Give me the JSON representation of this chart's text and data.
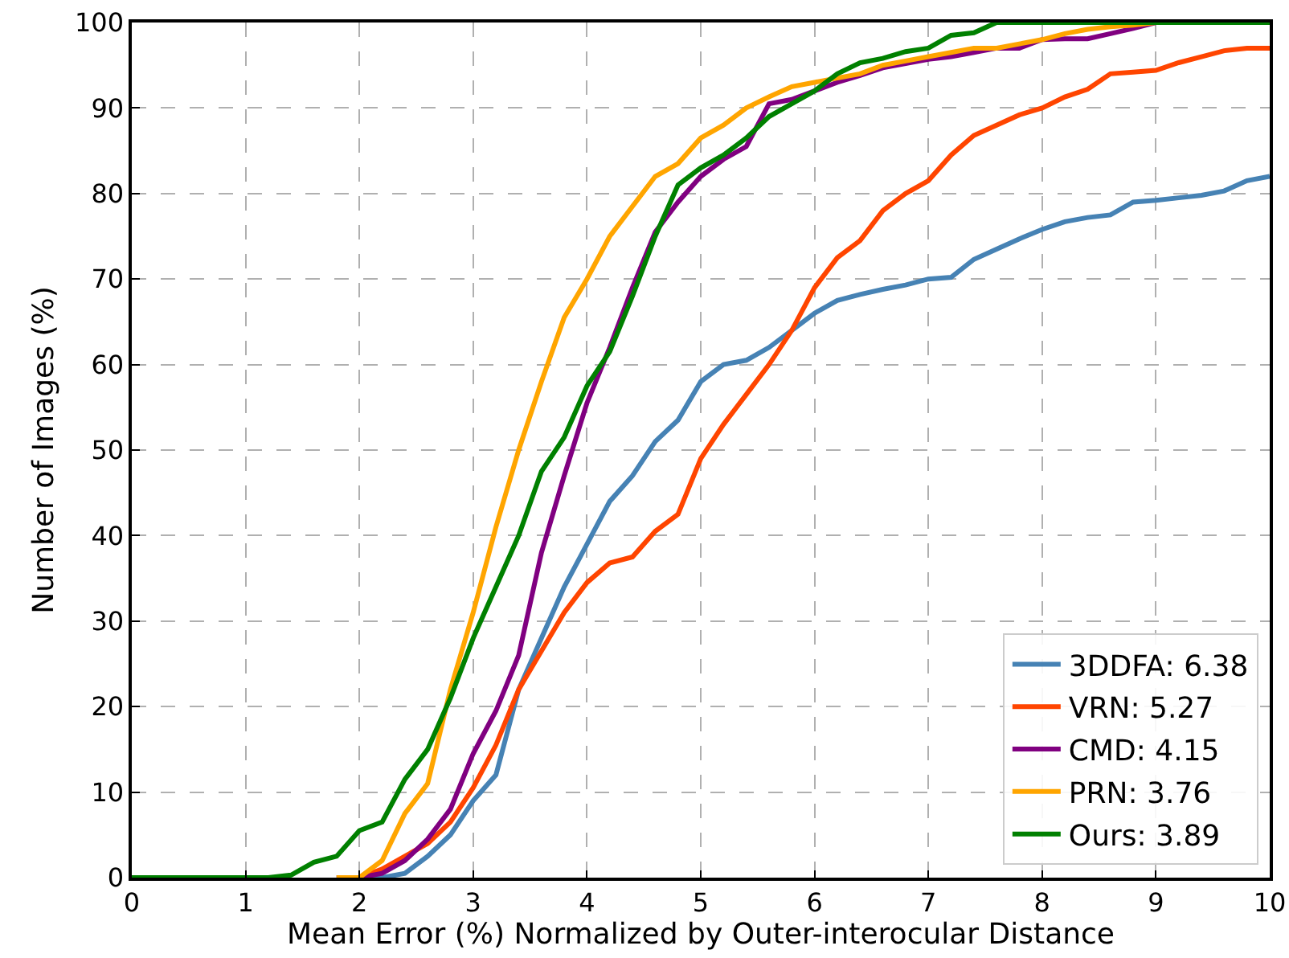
{
  "chart_data": {
    "type": "line",
    "xlabel": "Mean Error (%) Normalized by Outer-interocular Distance",
    "ylabel": "Number of Images (%)",
    "x": [
      0,
      0.2,
      0.4,
      0.6,
      0.8,
      1,
      1.2,
      1.4,
      1.6,
      1.8,
      2,
      2.2,
      2.4,
      2.6,
      2.8,
      3,
      3.2,
      3.4,
      3.6,
      3.8,
      4,
      4.2,
      4.4,
      4.6,
      4.8,
      5,
      5.2,
      5.4,
      5.6,
      5.8,
      6,
      6.2,
      6.4,
      6.6,
      6.8,
      7,
      7.2,
      7.4,
      7.6,
      7.8,
      8,
      8.2,
      8.4,
      8.6,
      8.8,
      9,
      9.2,
      9.4,
      9.6,
      9.8,
      10
    ],
    "series": [
      {
        "name": "3DDFA: 6.38",
        "color": "#4682b4",
        "values": [
          null,
          null,
          null,
          null,
          null,
          null,
          null,
          null,
          null,
          0,
          0,
          0,
          0.5,
          2.5,
          5,
          9,
          12,
          22,
          28,
          34,
          39,
          44,
          47,
          51,
          53.5,
          58,
          60,
          60.5,
          62,
          64,
          66,
          67.5,
          68.2,
          68.8,
          69.3,
          70,
          70.2,
          72.3,
          73.5,
          74.7,
          75.8,
          76.7,
          77.2,
          77.5,
          79,
          79.2,
          79.5,
          79.8,
          80.3,
          81.5,
          82
        ]
      },
      {
        "name": "VRN: 5.27",
        "color": "#ff4500",
        "values": [
          null,
          null,
          null,
          null,
          null,
          null,
          null,
          null,
          null,
          0,
          0,
          1,
          2.5,
          4,
          6.5,
          10.5,
          15.5,
          22,
          26.5,
          31,
          34.5,
          36.8,
          37.5,
          40.5,
          42.5,
          49,
          53,
          56.5,
          60,
          64,
          69,
          72.5,
          74.5,
          78,
          80,
          81.5,
          84.5,
          86.8,
          88,
          89.2,
          90,
          91.3,
          92.2,
          94,
          94.2,
          94.4,
          95.3,
          96,
          96.7,
          97,
          97
        ]
      },
      {
        "name": "CMD: 4.15",
        "color": "#800080",
        "values": [
          null,
          null,
          null,
          null,
          null,
          null,
          null,
          null,
          null,
          0,
          0,
          0.5,
          2,
          4.5,
          8,
          14.5,
          19.5,
          26,
          38,
          47,
          55.5,
          62,
          69,
          75.5,
          79,
          82,
          84,
          85.5,
          90.5,
          91,
          92,
          93,
          93.8,
          94.7,
          95.2,
          95.7,
          96,
          96.5,
          97,
          97,
          98,
          98.1,
          98.1,
          98.7,
          99.3,
          100,
          null,
          null,
          null,
          null,
          null
        ]
      },
      {
        "name": "PRN: 3.76",
        "color": "#ffa500",
        "values": [
          null,
          null,
          null,
          null,
          null,
          null,
          null,
          null,
          null,
          0,
          0,
          2,
          7.5,
          11,
          22,
          31,
          41,
          50,
          58,
          65.5,
          70,
          75,
          78.5,
          82,
          83.5,
          86.5,
          88,
          90,
          91.3,
          92.5,
          93,
          93.5,
          94,
          95,
          95.5,
          96,
          96.5,
          97,
          97,
          97.5,
          98,
          98.7,
          99.2,
          99.5,
          99.7,
          100,
          null,
          null,
          null,
          null,
          null
        ]
      },
      {
        "name": "Ours: 3.89",
        "color": "#008000",
        "values": [
          0,
          0,
          0,
          0,
          0,
          0,
          0,
          0.3,
          1.8,
          2.5,
          5.5,
          6.5,
          11.5,
          15,
          21,
          28,
          34,
          40,
          47.5,
          51.5,
          57.5,
          61.5,
          68,
          75,
          81,
          83,
          84.5,
          86.5,
          89,
          90.5,
          92,
          94,
          95.3,
          95.8,
          96.6,
          97,
          98.5,
          98.8,
          100,
          100,
          100,
          100,
          100,
          100,
          100,
          100,
          100,
          100,
          100,
          100,
          100
        ]
      }
    ],
    "xlim": [
      0,
      10
    ],
    "xticks": [
      0,
      1,
      2,
      3,
      4,
      5,
      6,
      7,
      8,
      9,
      10
    ],
    "ylim": [
      0,
      100
    ],
    "yticks": [
      0,
      10,
      20,
      30,
      40,
      50,
      60,
      70,
      80,
      90,
      100
    ],
    "grid": true,
    "legend": "bottom right",
    "line_style": "solid",
    "marker": "none"
  }
}
